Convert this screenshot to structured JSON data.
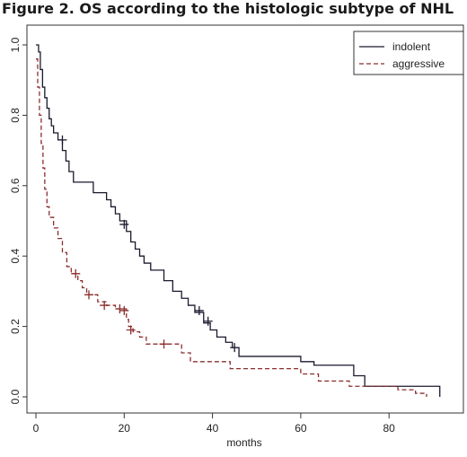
{
  "figure_title": "Figure 2. OS according to the histologic subtype of NHL",
  "chart_data": {
    "type": "line",
    "step": true,
    "xlabel": "months",
    "ylabel": "",
    "xlim": [
      0,
      94
    ],
    "ylim": [
      0,
      1.0
    ],
    "xticks": [
      0,
      20,
      40,
      60,
      80
    ],
    "yticks": [
      0.0,
      0.2,
      0.4,
      0.6,
      0.8,
      1.0
    ],
    "xtick_labels": [
      "0",
      "20",
      "40",
      "60",
      "80"
    ],
    "ytick_labels": [
      "0.0",
      "0.2",
      "0.4",
      "0.6",
      "0.8",
      "1.0"
    ],
    "grid": false,
    "legend": {
      "position": "top-right"
    },
    "series": [
      {
        "name": "indolent",
        "color": "#1a1a2e",
        "dash": "solid",
        "points": [
          [
            0,
            1.0
          ],
          [
            0.6,
            0.98
          ],
          [
            1.0,
            0.93
          ],
          [
            1.5,
            0.88
          ],
          [
            2.0,
            0.85
          ],
          [
            2.5,
            0.82
          ],
          [
            3.0,
            0.79
          ],
          [
            3.5,
            0.77
          ],
          [
            4.0,
            0.75
          ],
          [
            5.0,
            0.73
          ],
          [
            6.0,
            0.7
          ],
          [
            6.8,
            0.67
          ],
          [
            7.5,
            0.64
          ],
          [
            8.5,
            0.61
          ],
          [
            13.0,
            0.58
          ],
          [
            16.0,
            0.56
          ],
          [
            17.0,
            0.54
          ],
          [
            18.0,
            0.52
          ],
          [
            19.0,
            0.5
          ],
          [
            20.5,
            0.47
          ],
          [
            21.5,
            0.44
          ],
          [
            22.5,
            0.42
          ],
          [
            23.5,
            0.4
          ],
          [
            24.5,
            0.38
          ],
          [
            26.0,
            0.36
          ],
          [
            29.0,
            0.33
          ],
          [
            31.0,
            0.3
          ],
          [
            33.0,
            0.28
          ],
          [
            34.5,
            0.26
          ],
          [
            36.0,
            0.24
          ],
          [
            38.0,
            0.21
          ],
          [
            39.5,
            0.19
          ],
          [
            41.0,
            0.17
          ],
          [
            43.0,
            0.155
          ],
          [
            44.5,
            0.14
          ],
          [
            46.0,
            0.115
          ],
          [
            60.0,
            0.1
          ],
          [
            63.0,
            0.09
          ],
          [
            72.0,
            0.06
          ],
          [
            74.5,
            0.03
          ],
          [
            91.5,
            0.0
          ]
        ],
        "censored": [
          [
            6.0,
            0.73
          ],
          [
            20.0,
            0.49
          ],
          [
            37.0,
            0.245
          ],
          [
            39.0,
            0.215
          ],
          [
            45.0,
            0.14
          ]
        ]
      },
      {
        "name": "aggressive",
        "color": "#8b2e2e",
        "dash": "dashed",
        "points": [
          [
            0,
            0.96
          ],
          [
            0.4,
            0.88
          ],
          [
            0.8,
            0.8
          ],
          [
            1.2,
            0.72
          ],
          [
            1.6,
            0.65
          ],
          [
            2.0,
            0.59
          ],
          [
            2.5,
            0.54
          ],
          [
            3.0,
            0.51
          ],
          [
            4.0,
            0.48
          ],
          [
            5.0,
            0.45
          ],
          [
            6.0,
            0.41
          ],
          [
            7.0,
            0.37
          ],
          [
            8.0,
            0.35
          ],
          [
            9.5,
            0.33
          ],
          [
            10.5,
            0.31
          ],
          [
            11.5,
            0.29
          ],
          [
            14.0,
            0.27
          ],
          [
            16.0,
            0.26
          ],
          [
            18.0,
            0.25
          ],
          [
            20.5,
            0.22
          ],
          [
            21.0,
            0.2
          ],
          [
            22.0,
            0.185
          ],
          [
            23.5,
            0.17
          ],
          [
            25.0,
            0.15
          ],
          [
            33.0,
            0.125
          ],
          [
            35.0,
            0.1
          ],
          [
            44.0,
            0.08
          ],
          [
            60.0,
            0.065
          ],
          [
            64.0,
            0.045
          ],
          [
            71.0,
            0.03
          ],
          [
            82.0,
            0.02
          ],
          [
            86.0,
            0.01
          ],
          [
            88.5,
            0.0
          ]
        ],
        "censored": [
          [
            9.0,
            0.35
          ],
          [
            12.0,
            0.29
          ],
          [
            15.5,
            0.26
          ],
          [
            19.0,
            0.25
          ],
          [
            20.0,
            0.245
          ],
          [
            21.5,
            0.19
          ],
          [
            29.0,
            0.15
          ]
        ]
      }
    ]
  }
}
